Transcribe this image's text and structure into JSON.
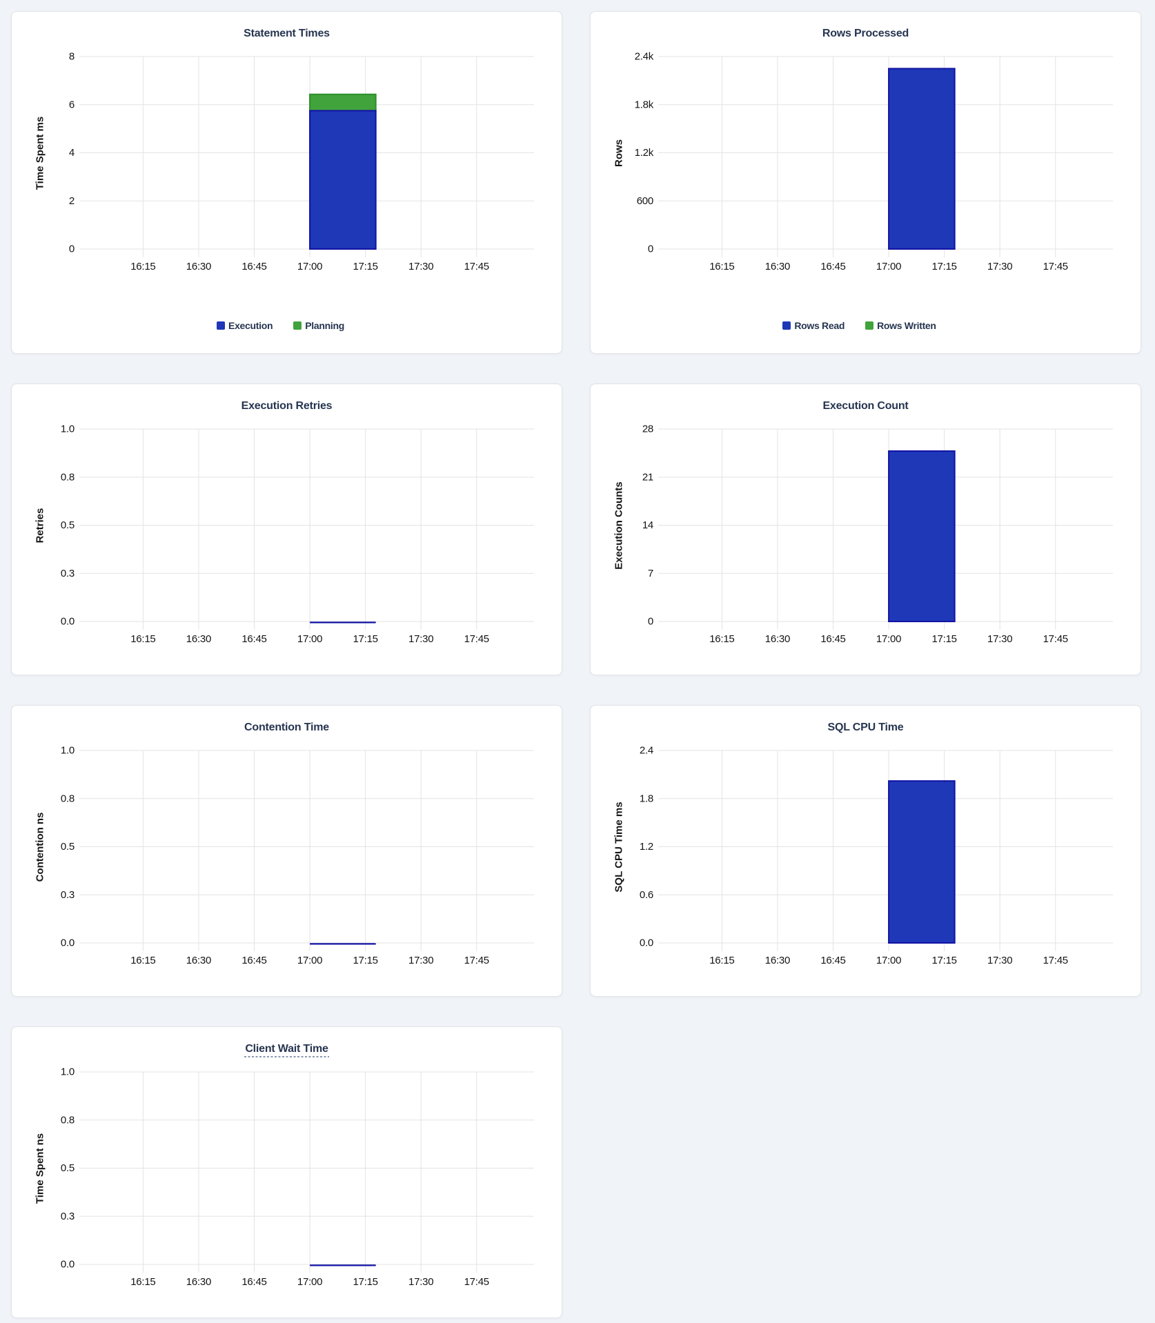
{
  "page": {
    "background": "#f0f3f8",
    "card_background": "#ffffff",
    "card_border": "#e0e3e8"
  },
  "colors": {
    "title": "#263550",
    "tick_text": "#141414",
    "axis_label": "#151515",
    "grid": "#e3e3e3",
    "dashed_underline": "#8a99ad",
    "bar_blue": "#1e38b8",
    "bar_blue_stroke": "#1213a3",
    "bar_green": "#41a33c",
    "bar_green_stroke": "#2d8f28"
  },
  "x_axis": {
    "tick_labels": [
      "16:15",
      "16:30",
      "16:45",
      "17:00",
      "17:15",
      "17:30",
      "17:45"
    ],
    "tick_minutes": [
      975,
      990,
      1005,
      1020,
      1035,
      1050,
      1065
    ],
    "domain_minutes": [
      957.8,
      1080.5
    ]
  },
  "chart_data": [
    {
      "type": "bar",
      "title": "Statement Times",
      "ylabel": "Time Spent ms",
      "ylim": [
        0,
        8
      ],
      "ytick_values": [
        0,
        2,
        4,
        6,
        8
      ],
      "ytick_labels": [
        "0",
        "2",
        "4",
        "6",
        "8"
      ],
      "x_tick_labels": [
        "16:15",
        "16:30",
        "16:45",
        "17:00",
        "17:15",
        "17:30",
        "17:45"
      ],
      "stacked": true,
      "show_legend": true,
      "title_underline_dashed": false,
      "bar": {
        "start_time": "17:00",
        "start_min": 1020,
        "duration_min": 17.8
      },
      "series": [
        {
          "name": "Execution",
          "value": 5.75,
          "fill": "#1e38b8",
          "stroke": "#1213a3"
        },
        {
          "name": "Planning",
          "value": 0.68,
          "fill": "#41a33c",
          "stroke": "#2d8f28"
        }
      ]
    },
    {
      "type": "bar",
      "title": "Rows Processed",
      "ylabel": "Rows",
      "ylim": [
        0,
        2400
      ],
      "ytick_values": [
        0,
        600,
        1200,
        1800,
        2400
      ],
      "ytick_labels": [
        "0",
        "600",
        "1.2k",
        "1.8k",
        "2.4k"
      ],
      "x_tick_labels": [
        "16:15",
        "16:30",
        "16:45",
        "17:00",
        "17:15",
        "17:30",
        "17:45"
      ],
      "stacked": true,
      "show_legend": true,
      "title_underline_dashed": false,
      "bar": {
        "start_time": "17:00",
        "start_min": 1020,
        "duration_min": 17.8
      },
      "series": [
        {
          "name": "Rows Read",
          "value": 2250,
          "fill": "#1e38b8",
          "stroke": "#1213a3"
        },
        {
          "name": "Rows Written",
          "value": 0,
          "fill": "#41a33c",
          "stroke": "#2d8f28"
        }
      ]
    },
    {
      "type": "bar",
      "title": "Execution Retries",
      "ylabel": "Retries",
      "ylim": [
        0,
        1
      ],
      "ytick_values": [
        0,
        0.25,
        0.5,
        0.75,
        1
      ],
      "ytick_labels": [
        "0.0",
        "0.3",
        "0.5",
        "0.8",
        "1.0"
      ],
      "x_tick_labels": [
        "16:15",
        "16:30",
        "16:45",
        "17:00",
        "17:15",
        "17:30",
        "17:45"
      ],
      "stacked": true,
      "show_legend": false,
      "title_underline_dashed": false,
      "bar": {
        "start_time": "17:00",
        "start_min": 1020,
        "duration_min": 17.8
      },
      "series": [
        {
          "name": "Retries",
          "value": 0,
          "fill": "#1e38b8",
          "stroke": "#1213a3"
        }
      ]
    },
    {
      "type": "bar",
      "title": "Execution Count",
      "ylabel": "Execution Counts",
      "ylim": [
        0,
        28
      ],
      "ytick_values": [
        0,
        7,
        14,
        21,
        28
      ],
      "ytick_labels": [
        "0",
        "7",
        "14",
        "21",
        "28"
      ],
      "x_tick_labels": [
        "16:15",
        "16:30",
        "16:45",
        "17:00",
        "17:15",
        "17:30",
        "17:45"
      ],
      "stacked": true,
      "show_legend": false,
      "title_underline_dashed": false,
      "bar": {
        "start_time": "17:00",
        "start_min": 1020,
        "duration_min": 17.8
      },
      "series": [
        {
          "name": "Execution Count",
          "value": 24.8,
          "fill": "#1e38b8",
          "stroke": "#1213a3"
        }
      ]
    },
    {
      "type": "bar",
      "title": "Contention Time",
      "ylabel": "Contention ns",
      "ylim": [
        0,
        1
      ],
      "ytick_values": [
        0,
        0.25,
        0.5,
        0.75,
        1
      ],
      "ytick_labels": [
        "0.0",
        "0.3",
        "0.5",
        "0.8",
        "1.0"
      ],
      "x_tick_labels": [
        "16:15",
        "16:30",
        "16:45",
        "17:00",
        "17:15",
        "17:30",
        "17:45"
      ],
      "stacked": true,
      "show_legend": false,
      "title_underline_dashed": false,
      "bar": {
        "start_time": "17:00",
        "start_min": 1020,
        "duration_min": 17.8
      },
      "series": [
        {
          "name": "Contention",
          "value": 0,
          "fill": "#1e38b8",
          "stroke": "#1213a3"
        }
      ]
    },
    {
      "type": "bar",
      "title": "SQL CPU Time",
      "ylabel": "SQL CPU Time ms",
      "ylim": [
        0,
        2.4
      ],
      "ytick_values": [
        0,
        0.6,
        1.2,
        1.8,
        2.4
      ],
      "ytick_labels": [
        "0.0",
        "0.6",
        "1.2",
        "1.8",
        "2.4"
      ],
      "x_tick_labels": [
        "16:15",
        "16:30",
        "16:45",
        "17:00",
        "17:15",
        "17:30",
        "17:45"
      ],
      "stacked": true,
      "show_legend": false,
      "title_underline_dashed": false,
      "bar": {
        "start_time": "17:00",
        "start_min": 1020,
        "duration_min": 17.8
      },
      "series": [
        {
          "name": "SQL CPU Time",
          "value": 2.02,
          "fill": "#1e38b8",
          "stroke": "#1213a3"
        }
      ]
    },
    {
      "type": "bar",
      "title": "Client Wait Time",
      "ylabel": "Time Spent ns",
      "ylim": [
        0,
        1
      ],
      "ytick_values": [
        0,
        0.25,
        0.5,
        0.75,
        1
      ],
      "ytick_labels": [
        "0.0",
        "0.3",
        "0.5",
        "0.8",
        "1.0"
      ],
      "x_tick_labels": [
        "16:15",
        "16:30",
        "16:45",
        "17:00",
        "17:15",
        "17:30",
        "17:45"
      ],
      "stacked": true,
      "show_legend": false,
      "title_underline_dashed": true,
      "bar": {
        "start_time": "17:00",
        "start_min": 1020,
        "duration_min": 17.8
      },
      "series": [
        {
          "name": "Client Wait",
          "value": 0,
          "fill": "#1e38b8",
          "stroke": "#1213a3"
        }
      ]
    }
  ]
}
